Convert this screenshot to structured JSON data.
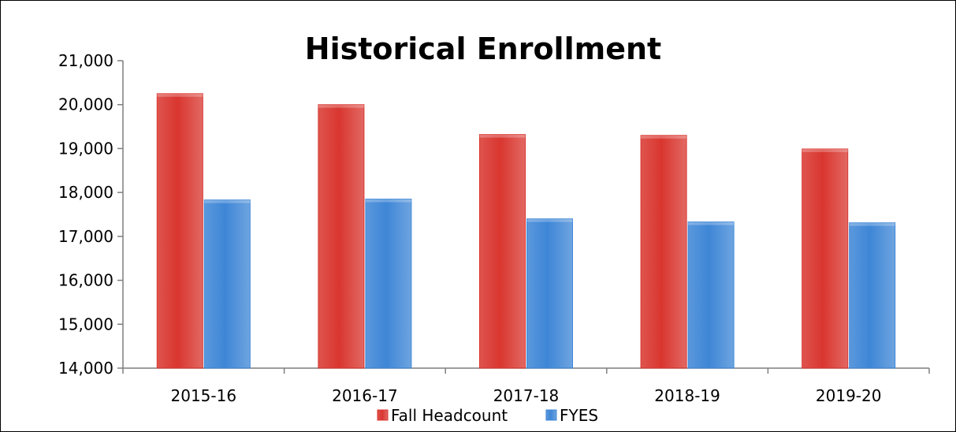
{
  "chart_data": {
    "type": "bar",
    "title": "Historical Enrollment",
    "xlabel": "",
    "ylabel": "",
    "categories": [
      "2015-16",
      "2016-17",
      "2017-18",
      "2018-19",
      "2019-20"
    ],
    "series": [
      {
        "name": "Fall Headcount",
        "color": "#d9362f",
        "values": [
          20250,
          20000,
          19320,
          19300,
          18990
        ]
      },
      {
        "name": "FYES",
        "color": "#3e86d6",
        "values": [
          17830,
          17850,
          17400,
          17330,
          17310
        ]
      }
    ],
    "ylim": [
      14000,
      21000
    ],
    "yticks": [
      14000,
      15000,
      16000,
      17000,
      18000,
      19000,
      20000,
      21000
    ],
    "ytick_labels": [
      "14,000",
      "15,000",
      "16,000",
      "17,000",
      "18,000",
      "19,000",
      "20,000",
      "21,000"
    ],
    "grid": false,
    "legend_position": "bottom"
  }
}
